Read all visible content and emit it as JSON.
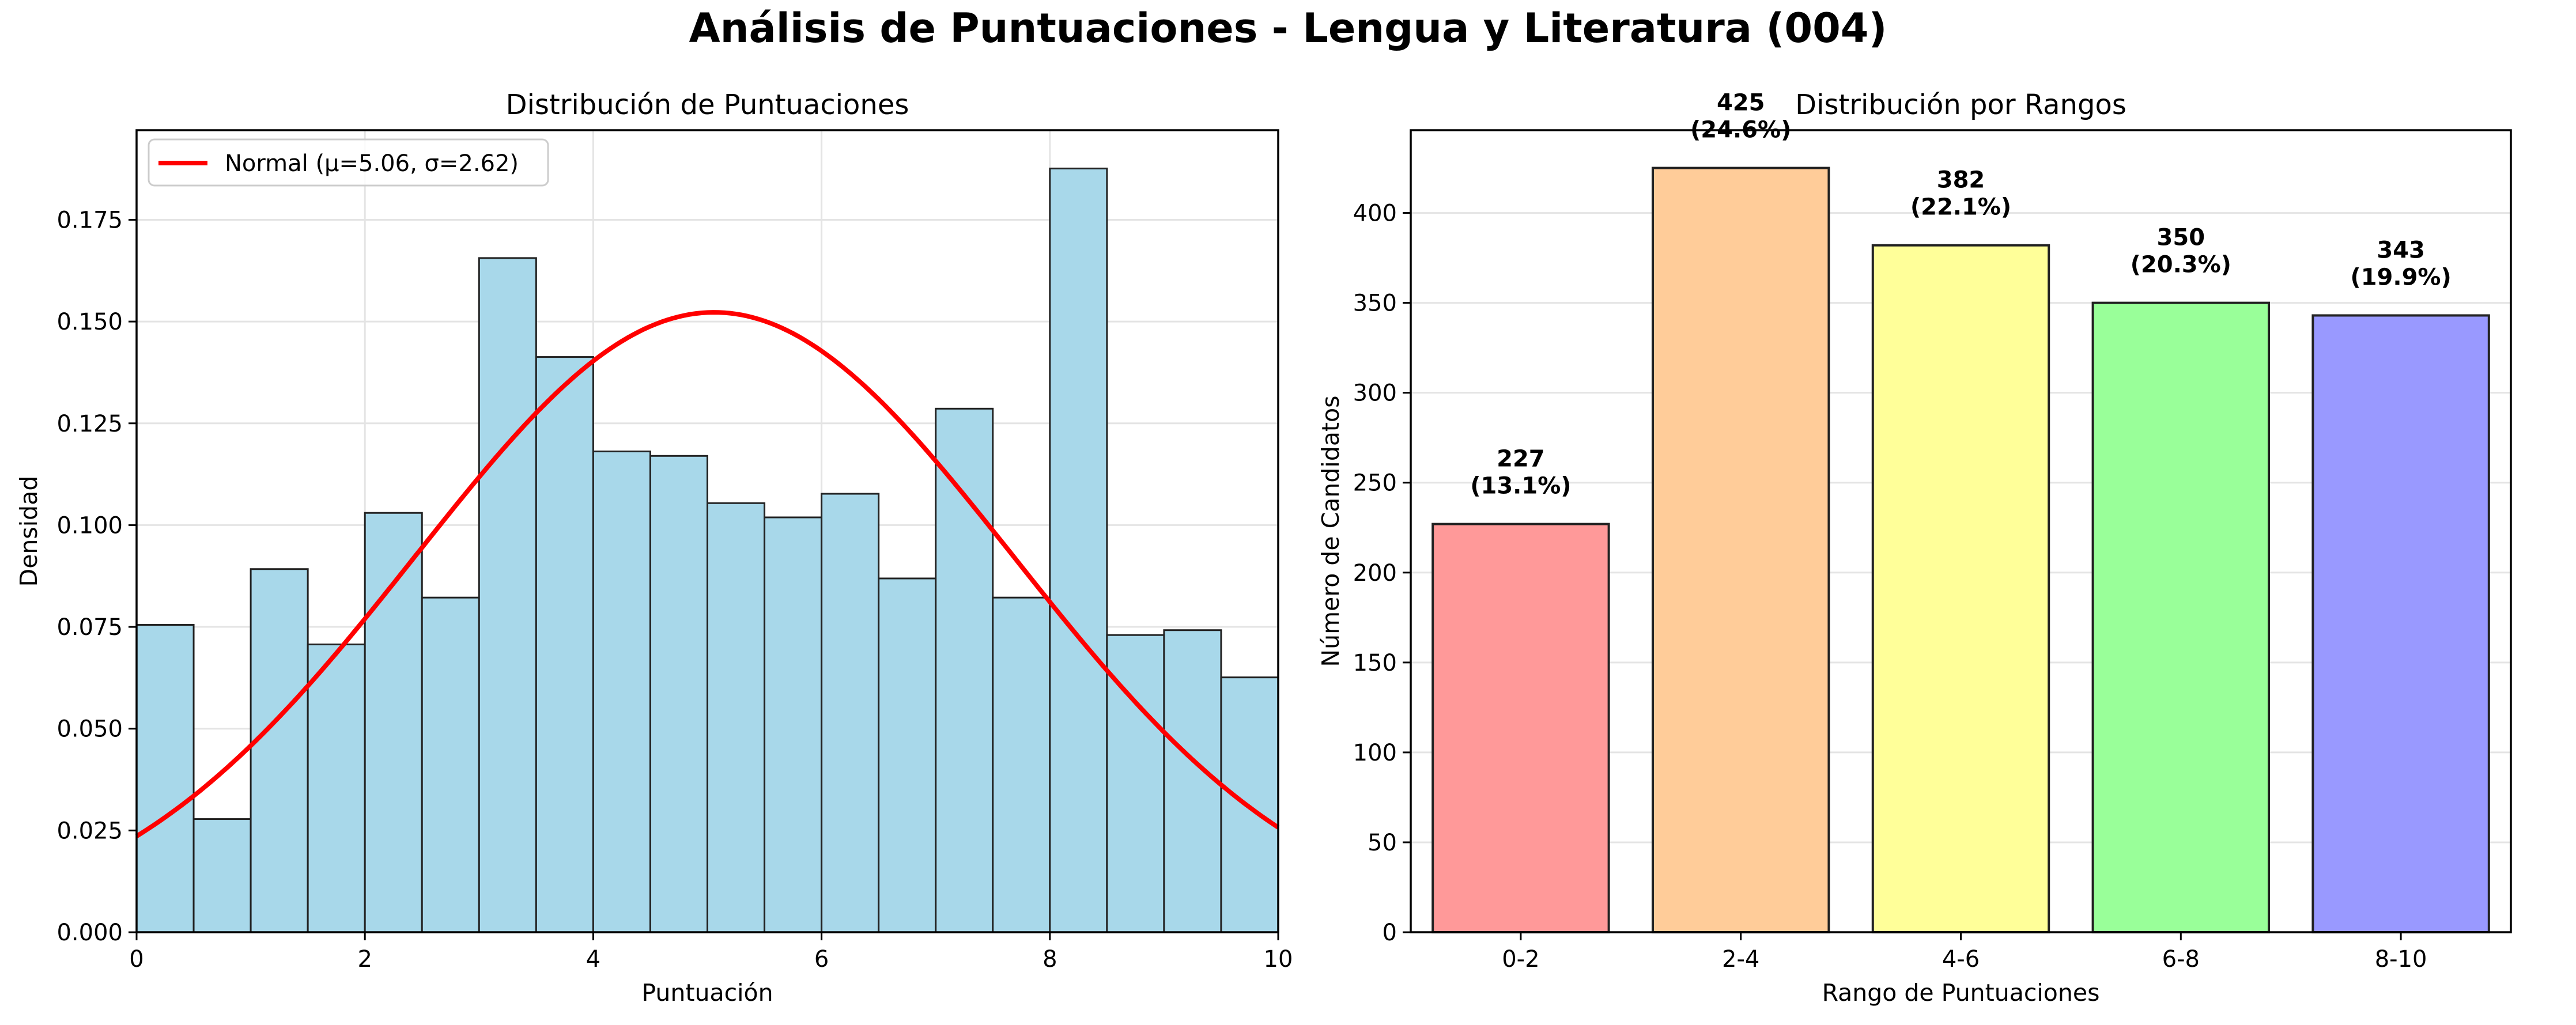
{
  "figure": {
    "title": "Análisis de Puntuaciones - Lengua y Literatura (004)"
  },
  "chart_data": [
    {
      "type": "bar",
      "subtype": "histogram",
      "title": "Distribución de Puntuaciones",
      "xlabel": "Puntuación",
      "ylabel": "Densidad",
      "xlim": [
        0,
        10
      ],
      "ylim": [
        0,
        0.197
      ],
      "xticks": [
        0,
        2,
        4,
        6,
        8,
        10
      ],
      "xtick_labels": [
        "0",
        "2",
        "4",
        "6",
        "8",
        "10"
      ],
      "yticks": [
        0,
        0.025,
        0.05,
        0.075,
        0.1,
        0.125,
        0.15,
        0.175
      ],
      "ytick_labels": [
        "0.000",
        "0.025",
        "0.050",
        "0.075",
        "0.100",
        "0.125",
        "0.150",
        "0.175"
      ],
      "grid": true,
      "bin_edges": [
        0,
        0.5,
        1,
        1.5,
        2,
        2.5,
        3,
        3.5,
        4,
        4.5,
        5,
        5.5,
        6,
        6.5,
        7,
        7.5,
        8,
        8.5,
        9,
        9.5,
        10
      ],
      "values": [
        0.0755,
        0.0278,
        0.0892,
        0.0707,
        0.103,
        0.0822,
        0.1656,
        0.1413,
        0.1181,
        0.117,
        0.1054,
        0.1019,
        0.1077,
        0.0869,
        0.1286,
        0.0822,
        0.1876,
        0.073,
        0.0742,
        0.0626
      ],
      "bar_color": "#a8d8ea",
      "edge_color": "#222222",
      "series": [
        {
          "name": "Normal (μ=5.06, σ=2.62)",
          "kind": "normal-pdf",
          "mu": 5.06,
          "sigma": 2.62,
          "color": "#ff0000"
        }
      ],
      "legend_position": "upper-left"
    },
    {
      "type": "bar",
      "title": "Distribución por Rangos",
      "xlabel": "Rango de Puntuaciones",
      "ylabel": "Número de Candidatos",
      "categories": [
        "0-2",
        "2-4",
        "4-6",
        "6-8",
        "8-10"
      ],
      "values": [
        227,
        425,
        382,
        350,
        343
      ],
      "value_labels": [
        "227",
        "425",
        "382",
        "350",
        "343"
      ],
      "percent_labels": [
        "(13.1%)",
        "(24.6%)",
        "(22.1%)",
        "(20.3%)",
        "(19.9%)"
      ],
      "colors": [
        "#ff9999",
        "#ffcc99",
        "#ffff99",
        "#99ff99",
        "#9999ff"
      ],
      "edge_color": "#222222",
      "ylim": [
        0,
        446
      ],
      "yticks": [
        0,
        50,
        100,
        150,
        200,
        250,
        300,
        350,
        400
      ],
      "ytick_labels": [
        "0",
        "50",
        "100",
        "150",
        "200",
        "250",
        "300",
        "350",
        "400"
      ],
      "grid": true
    }
  ]
}
